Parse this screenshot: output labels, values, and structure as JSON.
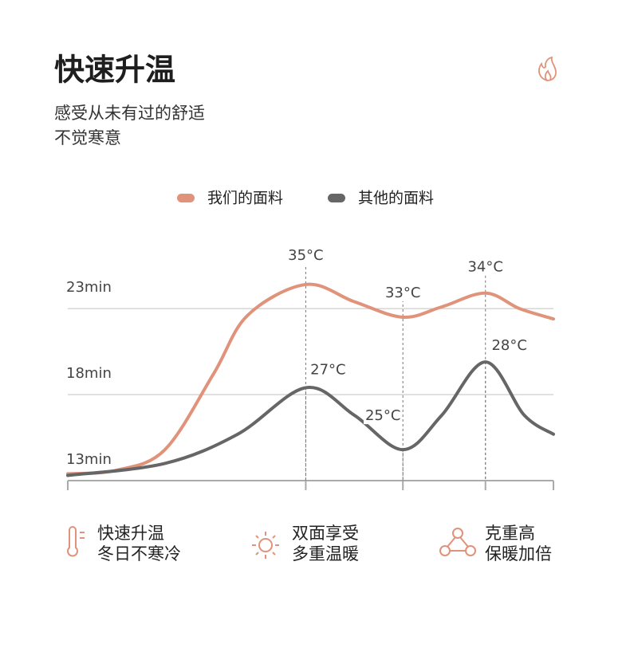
{
  "header": {
    "title": "快速升温",
    "subtitle": [
      "感受从未有过的舒适",
      "不觉寒意"
    ]
  },
  "chart_data": {
    "type": "line",
    "series": [
      {
        "name": "我们的面料",
        "color": "#e0937a",
        "x": [
          0,
          1,
          2,
          3,
          3.7,
          4.9,
          5.9,
          6.9,
          7.7,
          8.6,
          9.3,
          10
        ],
        "values": [
          13.4,
          13.6,
          14.8,
          19.2,
          22.6,
          24.4,
          23.4,
          22.5,
          23.1,
          23.9,
          23.0,
          22.4
        ],
        "annotations": [
          {
            "text": "35°C",
            "x": 4.9
          },
          {
            "text": "33°C",
            "x": 6.9
          },
          {
            "text": "34°C",
            "x": 8.6
          }
        ]
      },
      {
        "name": "其他的面料",
        "color": "#666666",
        "x": [
          0,
          2,
          3.5,
          4.9,
          5.9,
          6.9,
          7.7,
          8.6,
          9.4,
          10
        ],
        "values": [
          13.3,
          14.0,
          15.7,
          18.4,
          16.8,
          14.8,
          16.8,
          19.9,
          16.8,
          15.7
        ],
        "annotations": [
          {
            "text": "27°C",
            "x": 4.9
          },
          {
            "text": "25°C",
            "x": 6.9
          },
          {
            "text": "28°C",
            "x": 8.6
          }
        ]
      }
    ],
    "xlim": [
      0,
      10
    ],
    "xticks": [
      0,
      4.9,
      6.9,
      8.6,
      10
    ],
    "ylim": [
      13,
      25
    ],
    "yticks": [
      {
        "value": 13,
        "label": "13min"
      },
      {
        "value": 18,
        "label": "18min"
      },
      {
        "value": 23,
        "label": "23min"
      }
    ],
    "grid": true
  },
  "features": [
    {
      "lines": [
        "快速升温",
        "冬日不寒冷"
      ]
    },
    {
      "lines": [
        "双面享受",
        "多重温暖"
      ]
    },
    {
      "lines": [
        "克重高",
        "保暖加倍"
      ]
    }
  ]
}
